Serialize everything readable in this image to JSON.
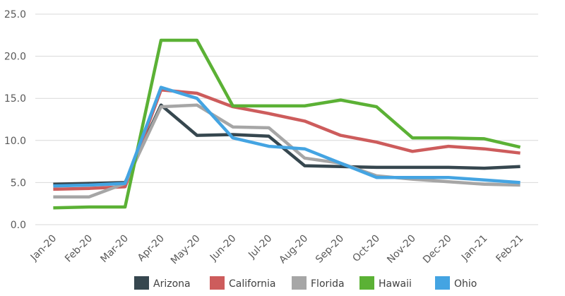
{
  "chart_data": {
    "type": "line",
    "categories": [
      "Jan-20",
      "Feb-20",
      "Mar-20",
      "Apr-20",
      "May-20",
      "Jun-20",
      "Jul-20",
      "Aug-20",
      "Sep-20",
      "Oct-20",
      "Nov-20",
      "Dec-20",
      "Jan-21",
      "Feb-21"
    ],
    "yticks": [
      "0.0",
      "5.0",
      "10.0",
      "15.0",
      "20.0",
      "25.0"
    ],
    "ylim": [
      0,
      25
    ],
    "grid": true,
    "legend_position": "bottom",
    "series": [
      {
        "name": "Arizona",
        "color": "#36474f",
        "values": [
          4.8,
          4.9,
          5.0,
          14.2,
          10.6,
          10.7,
          10.5,
          7.0,
          6.9,
          6.8,
          6.8,
          6.8,
          6.7,
          6.9
        ]
      },
      {
        "name": "California",
        "color": "#cd5c5c",
        "values": [
          4.2,
          4.3,
          4.5,
          16.0,
          15.6,
          14.0,
          13.2,
          12.3,
          10.6,
          9.8,
          8.7,
          9.3,
          9.0,
          8.5
        ]
      },
      {
        "name": "Florida",
        "color": "#a6a6a6",
        "values": [
          3.3,
          3.3,
          4.9,
          14.0,
          14.2,
          11.6,
          11.5,
          7.9,
          7.3,
          5.8,
          5.4,
          5.1,
          4.8,
          4.7
        ]
      },
      {
        "name": "Hawaii",
        "color": "#5bb135",
        "values": [
          2.0,
          2.1,
          2.1,
          21.9,
          21.9,
          14.1,
          14.1,
          14.1,
          14.8,
          14.0,
          10.3,
          10.3,
          10.2,
          9.2
        ]
      },
      {
        "name": "Ohio",
        "color": "#44a4e2",
        "values": [
          4.6,
          4.7,
          4.9,
          16.3,
          15.0,
          10.3,
          9.3,
          9.0,
          7.3,
          5.6,
          5.6,
          5.6,
          5.3,
          5.0
        ]
      }
    ]
  }
}
